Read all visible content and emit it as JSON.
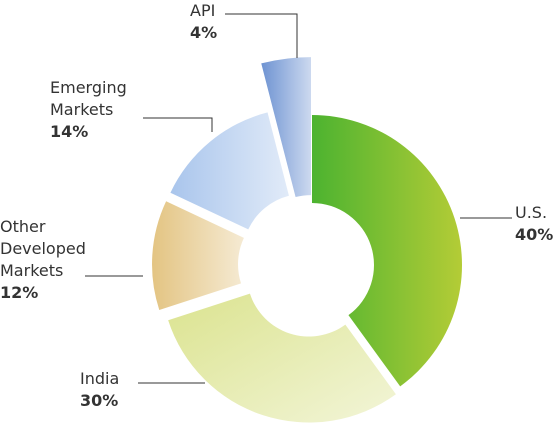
{
  "chart_data": {
    "type": "pie",
    "categories": [
      "U.S.",
      "India",
      "Other Developed Markets",
      "Emerging Markets",
      "API"
    ],
    "values": [
      40,
      30,
      12,
      14,
      4
    ],
    "value_labels": [
      "40%",
      "30%",
      "12%",
      "14%",
      "4%"
    ],
    "colors": [
      "#4cb330",
      "#dbe38f",
      "#e3c482",
      "#a9c5ec",
      "#6e93d2"
    ]
  }
}
